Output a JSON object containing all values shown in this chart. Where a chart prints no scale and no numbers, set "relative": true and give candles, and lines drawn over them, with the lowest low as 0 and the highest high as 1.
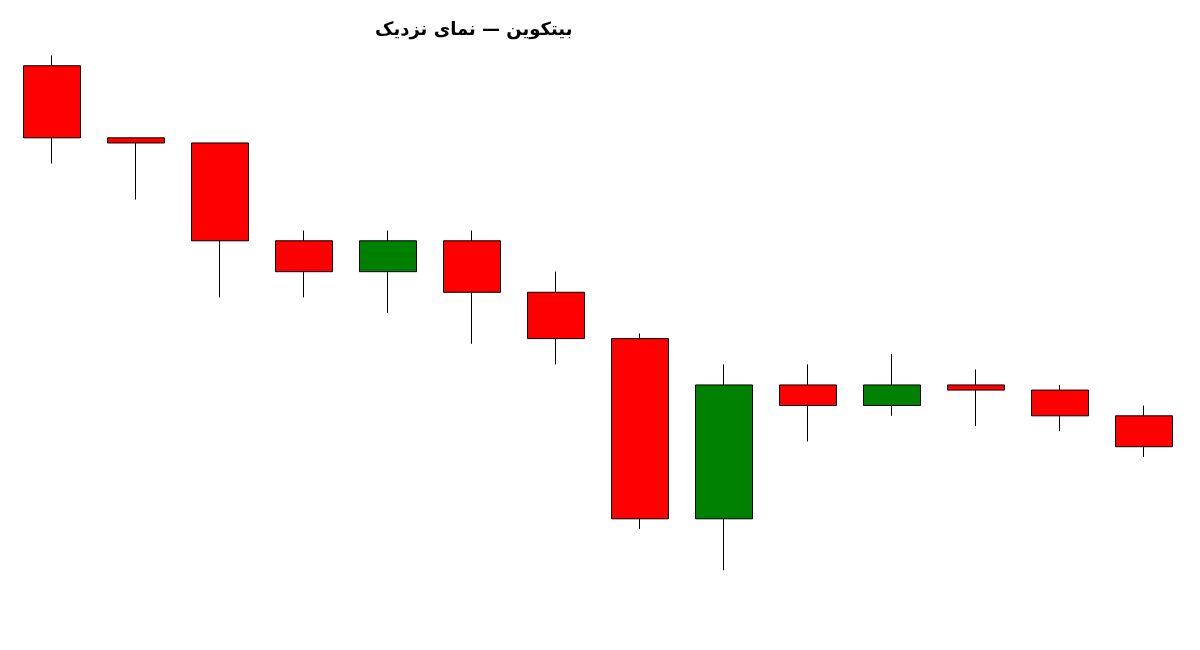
{
  "chart_data": {
    "type": "candlestick",
    "title": "بیتکوین — نمای نزدیک",
    "relative": true,
    "categories": [
      null,
      null,
      null,
      null,
      null,
      null,
      null,
      null,
      null,
      null,
      null,
      null,
      null,
      null
    ],
    "ohlc": [
      [
        0.98,
        1.0,
        0.79,
        0.84
      ],
      [
        0.84,
        0.84,
        0.72,
        0.83
      ],
      [
        0.83,
        0.83,
        0.53,
        0.64
      ],
      [
        0.64,
        0.66,
        0.53,
        0.58
      ],
      [
        0.58,
        0.66,
        0.5,
        0.64
      ],
      [
        0.64,
        0.66,
        0.44,
        0.54
      ],
      [
        0.54,
        0.58,
        0.4,
        0.45
      ],
      [
        0.45,
        0.46,
        0.08,
        0.1
      ],
      [
        0.1,
        0.4,
        0.0,
        0.36
      ],
      [
        0.36,
        0.4,
        0.25,
        0.32
      ],
      [
        0.32,
        0.42,
        0.3,
        0.36
      ],
      [
        0.36,
        0.39,
        0.28,
        0.35
      ],
      [
        0.35,
        0.36,
        0.27,
        0.3
      ],
      [
        0.3,
        0.32,
        0.22,
        0.24
      ]
    ],
    "colors": [
      "#ff0000",
      "#ff0000",
      "#ff0000",
      "#ff0000",
      "#008000",
      "#ff0000",
      "#ff0000",
      "#ff0000",
      "#008000",
      "#ff0000",
      "#008000",
      "#ff0000",
      "#ff0000",
      "#ff0000"
    ]
  }
}
